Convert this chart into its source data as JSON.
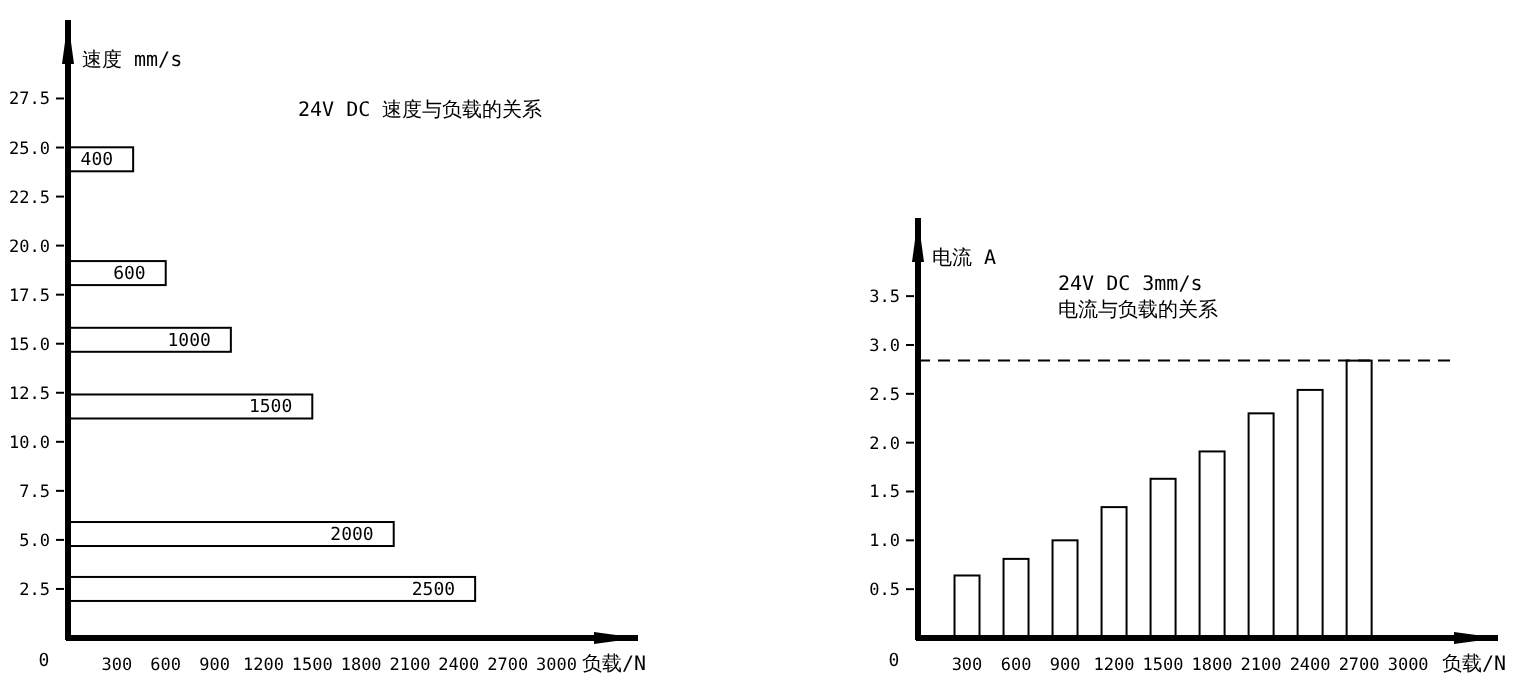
{
  "chart_data": [
    {
      "type": "bar",
      "orientation": "horizontal",
      "title": "24V DC 速度与负载的关系",
      "ylabel": "速度 mm/s",
      "xlabel": "负载/N",
      "x": [
        24.4,
        18.6,
        15.2,
        11.8,
        5.3,
        2.5
      ],
      "values": [
        400,
        600,
        1000,
        1500,
        2000,
        2500
      ],
      "color": "#ffffff",
      "data_labels": true,
      "xlim": [
        0,
        3500
      ],
      "xticks": [
        300,
        600,
        900,
        1200,
        1500,
        1800,
        2100,
        2400,
        2700,
        3000
      ],
      "ylim": [
        0,
        31.5
      ],
      "yticks": [
        {
          "value": 2.5,
          "label": "2.5"
        },
        {
          "value": 5,
          "label": "5.0"
        },
        {
          "value": 7.5,
          "label": "7.5"
        },
        {
          "value": 10,
          "label": "10.0"
        },
        {
          "value": 12.5,
          "label": "12.5"
        },
        {
          "value": 15,
          "label": "15.0"
        },
        {
          "value": 17.5,
          "label": "17.5"
        },
        {
          "value": 20,
          "label": "20.0"
        },
        {
          "value": 22.5,
          "label": "22.5"
        },
        {
          "value": 25,
          "label": "25.0"
        },
        {
          "value": 27.5,
          "label": "27.5"
        }
      ],
      "annotations": [
        "0"
      ]
    },
    {
      "type": "bar",
      "title": "24V DC  3mm/s",
      "subtitle": "电流与负载的关系",
      "ylabel": "电流 A",
      "xlabel": "负载/N",
      "x": [
        300,
        600,
        900,
        1200,
        1500,
        1800,
        2100,
        2400,
        2700
      ],
      "values": [
        0.64,
        0.81,
        1.0,
        1.34,
        1.63,
        1.91,
        2.3,
        2.54,
        2.84
      ],
      "color": "#ffffff",
      "xlim": [
        0,
        3550
      ],
      "xticks": [
        300,
        600,
        900,
        1200,
        1500,
        1800,
        2100,
        2400,
        2700,
        3000
      ],
      "ylim": [
        0,
        4.3
      ],
      "yticks": [
        0.5,
        {
          "value": 1,
          "label": "1.0"
        },
        1.5,
        {
          "value": 2,
          "label": "2.0"
        },
        2.5,
        {
          "value": 3,
          "label": "3.0"
        },
        3.5
      ],
      "ref_lines": [
        {
          "axis": "y",
          "value": 2.84,
          "line_style": "dashed"
        }
      ],
      "annotations": [
        "0"
      ]
    }
  ]
}
